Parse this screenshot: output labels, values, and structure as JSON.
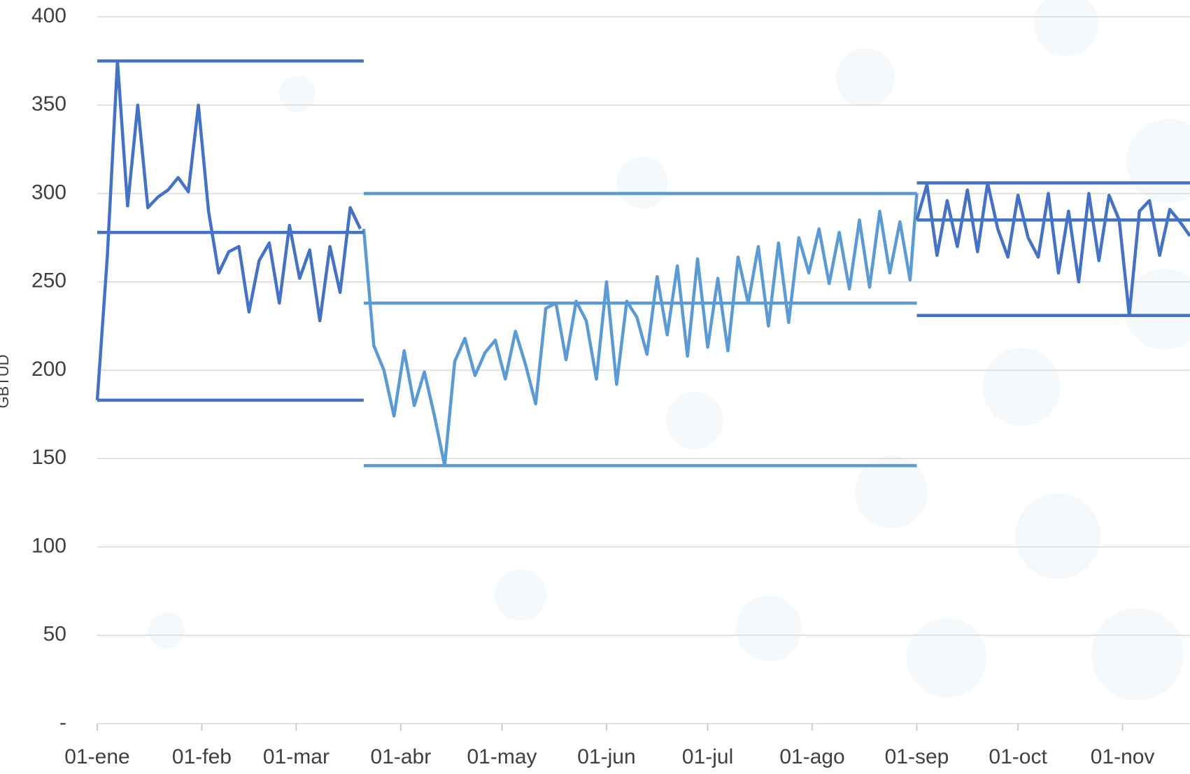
{
  "chart_data": {
    "type": "line",
    "y_label": "GBTUD",
    "xlim": [
      0,
      324
    ],
    "ylim": [
      0,
      400
    ],
    "xticks": [
      {
        "value": 0,
        "label": "01-ene"
      },
      {
        "value": 31,
        "label": "01-feb"
      },
      {
        "value": 59,
        "label": "01-mar"
      },
      {
        "value": 90,
        "label": "01-abr"
      },
      {
        "value": 120,
        "label": "01-may"
      },
      {
        "value": 151,
        "label": "01-jun"
      },
      {
        "value": 181,
        "label": "01-jul"
      },
      {
        "value": 212,
        "label": "01-ago"
      },
      {
        "value": 243,
        "label": "01-sep"
      },
      {
        "value": 273,
        "label": "01-oct"
      },
      {
        "value": 304,
        "label": "01-nov"
      }
    ],
    "yticks": [
      {
        "value": 0,
        "label": "-"
      },
      50,
      100,
      150,
      200,
      250,
      300,
      350,
      400
    ],
    "grid": true,
    "series": [
      {
        "color": "#4472c4",
        "x": [
          0,
          3,
          6,
          9,
          12,
          15,
          18,
          21,
          24,
          27,
          30,
          33,
          36,
          39,
          42,
          45,
          48,
          51,
          54,
          57,
          60,
          63,
          66,
          69,
          72,
          75,
          78
        ],
        "values": [
          183,
          265,
          375,
          293,
          350,
          292,
          298,
          302,
          309,
          301,
          350,
          290,
          255,
          267,
          270,
          233,
          262,
          272,
          238,
          282,
          252,
          268,
          228,
          270,
          244,
          292,
          280
        ]
      },
      {
        "color": "#5b9bd5",
        "x": [
          79,
          82,
          85,
          88,
          91,
          94,
          97,
          100,
          103,
          106,
          109,
          112,
          115,
          118,
          121,
          124,
          127,
          130,
          133,
          136,
          139,
          142,
          145,
          148,
          151,
          154,
          157,
          160,
          163,
          166,
          169,
          172,
          175,
          178,
          181,
          184,
          187,
          190,
          193,
          196,
          199,
          202,
          205,
          208,
          211,
          214,
          217,
          220,
          223,
          226,
          229,
          232,
          235,
          238,
          241,
          243
        ],
        "values": [
          280,
          214,
          200,
          174,
          211,
          180,
          199,
          174,
          146,
          205,
          218,
          197,
          210,
          217,
          195,
          222,
          203,
          181,
          235,
          238,
          206,
          239,
          228,
          195,
          250,
          192,
          239,
          230,
          209,
          253,
          220,
          259,
          208,
          263,
          213,
          252,
          211,
          264,
          238,
          270,
          225,
          272,
          227,
          275,
          255,
          280,
          249,
          278,
          246,
          285,
          247,
          290,
          255,
          284,
          251,
          300
        ]
      },
      {
        "color": "#4472c4",
        "x": [
          243,
          246,
          249,
          252,
          255,
          258,
          261,
          264,
          267,
          270,
          273,
          276,
          279,
          282,
          285,
          288,
          291,
          294,
          297,
          300,
          303,
          306,
          309,
          312,
          315,
          318,
          321,
          324
        ],
        "values": [
          285,
          305,
          265,
          296,
          270,
          302,
          267,
          306,
          280,
          264,
          299,
          275,
          264,
          300,
          255,
          290,
          250,
          300,
          262,
          299,
          285,
          231,
          290,
          296,
          265,
          291,
          284,
          276
        ]
      },
      {
        "color": "#4472c4",
        "x": [
          0,
          79
        ],
        "values": [
          375,
          375
        ]
      },
      {
        "color": "#4472c4",
        "x": [
          0,
          79
        ],
        "values": [
          278,
          278
        ]
      },
      {
        "color": "#4472c4",
        "x": [
          0,
          79
        ],
        "values": [
          183,
          183
        ]
      },
      {
        "color": "#5b9bd5",
        "x": [
          79,
          243
        ],
        "values": [
          300,
          300
        ]
      },
      {
        "color": "#5b9bd5",
        "x": [
          79,
          243
        ],
        "values": [
          238,
          238
        ]
      },
      {
        "color": "#5b9bd5",
        "x": [
          79,
          243
        ],
        "values": [
          146,
          146
        ]
      },
      {
        "color": "#4472c4",
        "x": [
          243,
          324
        ],
        "values": [
          306,
          306
        ]
      },
      {
        "color": "#4472c4",
        "x": [
          243,
          324
        ],
        "values": [
          285,
          285
        ]
      },
      {
        "color": "#4472c4",
        "x": [
          243,
          324
        ],
        "values": [
          231,
          231
        ]
      }
    ]
  }
}
